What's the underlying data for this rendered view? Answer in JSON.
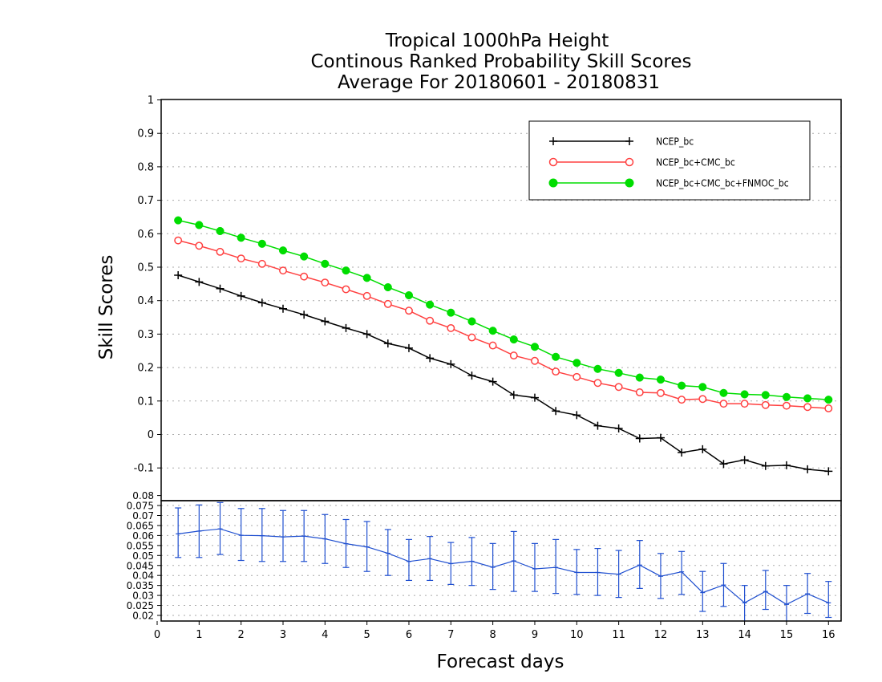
{
  "chart_data": [
    {
      "type": "line",
      "title": [
        "Tropical 1000hPa Height",
        "Continous Ranked Probability Skill Scores",
        "Average For 20180601 - 20180831"
      ],
      "xlabel": "Forecast days",
      "ylabel": "Skill Scores",
      "xlim": [
        0,
        16.1
      ],
      "ylim": [
        -0.2,
        1
      ],
      "yticks": [
        "-0.1",
        "0",
        "0.1",
        "0.2",
        "0.3",
        "0.4",
        "0.5",
        "0.6",
        "0.7",
        "0.8",
        "0.9",
        "1"
      ],
      "grid": true,
      "legend_position": "top-right",
      "x": [
        0.5,
        1,
        1.5,
        2,
        2.5,
        3,
        3.5,
        4,
        4.5,
        5,
        5.5,
        6,
        6.5,
        7,
        7.5,
        8,
        8.5,
        9,
        9.5,
        10,
        10.5,
        11,
        11.5,
        12,
        12.5,
        13,
        13.5,
        14,
        14.5,
        15,
        15.5,
        16
      ],
      "series": [
        {
          "name": "NCEP_bc",
          "color": "#000000",
          "marker": "plus",
          "values": [
            0.476,
            0.456,
            0.436,
            0.414,
            0.394,
            0.376,
            0.358,
            0.338,
            0.318,
            0.3,
            0.272,
            0.258,
            0.228,
            0.21,
            0.176,
            0.158,
            0.118,
            0.11,
            0.07,
            0.058,
            0.026,
            0.018,
            -0.012,
            -0.01,
            -0.054,
            -0.044,
            -0.088,
            -0.076,
            -0.094,
            -0.092,
            -0.104,
            -0.11
          ]
        },
        {
          "name": "NCEP_bc+CMC_bc",
          "color": "#ff4040",
          "marker": "open-circle",
          "values": [
            0.58,
            0.564,
            0.546,
            0.526,
            0.51,
            0.49,
            0.472,
            0.454,
            0.434,
            0.414,
            0.39,
            0.37,
            0.34,
            0.318,
            0.29,
            0.266,
            0.236,
            0.22,
            0.188,
            0.172,
            0.154,
            0.142,
            0.126,
            0.124,
            0.104,
            0.106,
            0.092,
            0.092,
            0.088,
            0.086,
            0.082,
            0.078
          ]
        },
        {
          "name": "NCEP_bc+CMC_bc+FNMOC_bc",
          "color": "#00dd00",
          "marker": "filled-circle",
          "values": [
            0.64,
            0.626,
            0.608,
            0.588,
            0.57,
            0.55,
            0.532,
            0.51,
            0.49,
            0.468,
            0.44,
            0.416,
            0.388,
            0.364,
            0.338,
            0.31,
            0.284,
            0.262,
            0.232,
            0.214,
            0.196,
            0.184,
            0.17,
            0.164,
            0.146,
            0.142,
            0.124,
            0.12,
            0.118,
            0.112,
            0.108,
            0.104
          ]
        }
      ]
    },
    {
      "type": "line",
      "xlabel": "Forecast days",
      "xlim": [
        0,
        16.1
      ],
      "xticks": [
        "0",
        "1",
        "2",
        "3",
        "4",
        "5",
        "6",
        "7",
        "8",
        "9",
        "10",
        "11",
        "12",
        "13",
        "14",
        "15",
        "16"
      ],
      "ylim": [
        0.014,
        0.075
      ],
      "yticks": [
        "0.02",
        "0.025",
        "0.03",
        "0.035",
        "0.04",
        "0.045",
        "0.05",
        "0.055",
        "0.06",
        "0.065",
        "0.07",
        "0.075",
        "0.08"
      ],
      "grid": true,
      "x": [
        0.5,
        1,
        1.5,
        2,
        2.5,
        3,
        3.5,
        4,
        4.5,
        5,
        5.5,
        6,
        6.5,
        7,
        7.5,
        8,
        8.5,
        9,
        9.5,
        10,
        10.5,
        11,
        11.5,
        12,
        12.5,
        13,
        13.5,
        14,
        14.5,
        15,
        15.5,
        16
      ],
      "series": [
        {
          "color": "#1f4fd0",
          "error_bars": true,
          "values": [
            0.0608,
            0.0622,
            0.0633,
            0.0601,
            0.0599,
            0.0593,
            0.0597,
            0.0583,
            0.0559,
            0.0543,
            0.0511,
            0.047,
            0.0484,
            0.0459,
            0.0471,
            0.0441,
            0.0473,
            0.0433,
            0.044,
            0.0415,
            0.0415,
            0.0406,
            0.0452,
            0.0396,
            0.0418,
            0.0314,
            0.0352,
            0.0263,
            0.032,
            0.0255,
            0.0308,
            0.0263
          ],
          "lower": [
            0.049,
            0.049,
            0.0505,
            0.0475,
            0.047,
            0.047,
            0.047,
            0.046,
            0.044,
            0.042,
            0.04,
            0.0375,
            0.0375,
            0.0355,
            0.035,
            0.033,
            0.032,
            0.032,
            0.031,
            0.0305,
            0.03,
            0.029,
            0.0335,
            0.0285,
            0.0305,
            0.022,
            0.0245,
            0.017,
            0.023,
            0.017,
            0.021,
            0.019
          ],
          "upper": [
            0.0738,
            0.0753,
            0.0765,
            0.0735,
            0.0735,
            0.0725,
            0.0725,
            0.0705,
            0.068,
            0.067,
            0.063,
            0.058,
            0.0595,
            0.0565,
            0.059,
            0.056,
            0.062,
            0.056,
            0.058,
            0.053,
            0.0535,
            0.0525,
            0.0575,
            0.051,
            0.052,
            0.042,
            0.046,
            0.035,
            0.0425,
            0.035,
            0.041,
            0.037
          ]
        }
      ]
    }
  ]
}
